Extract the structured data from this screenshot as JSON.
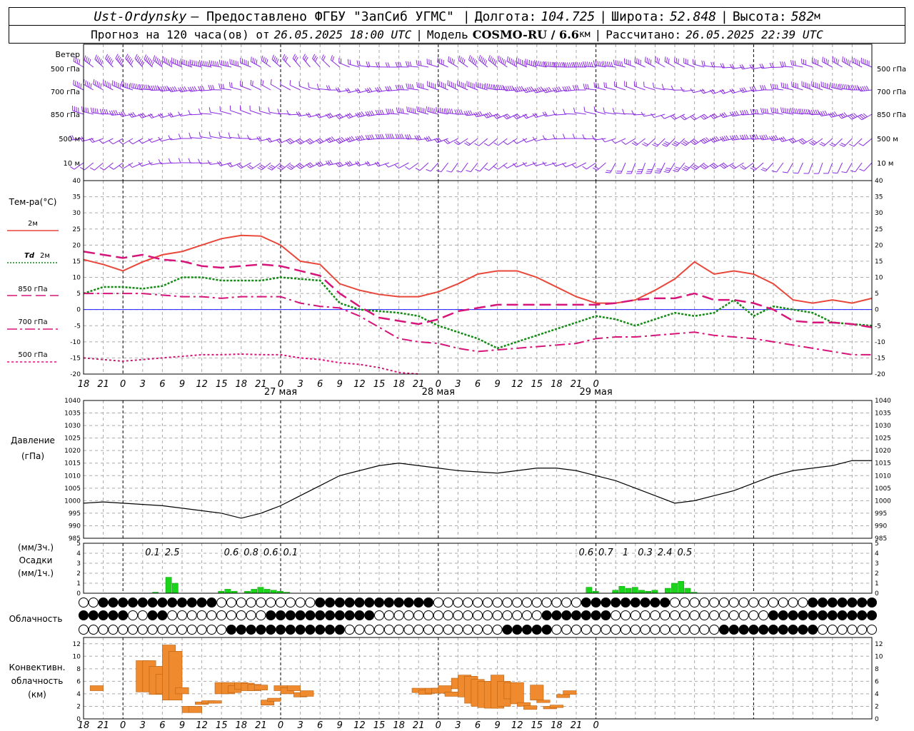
{
  "header": {
    "line1": {
      "station": "Ust-Ordynsky",
      "provider": "— Предоставлено ФГБУ \"ЗапСиб УГМС\"",
      "lon_label": "Долгота:",
      "lon_value": "104.725",
      "lat_label": "Широта:",
      "lat_value": "52.848",
      "alt_label": "Высота:",
      "alt_value": "582",
      "alt_unit": "м"
    },
    "line2": {
      "forecast_text": "Прогноз на 120 часа(ов) от",
      "forecast_from": "26.05.2025 18:00 UTC",
      "model_label": "Модель",
      "model_name": "COSMO-RU / 6.6",
      "model_unit": "км",
      "calc_label": "Рассчитано:",
      "calc_value": "26.05.2025 22:39 UTC"
    }
  },
  "colors": {
    "wind": "#8a2be2",
    "t2m": "#e8473a",
    "td2m": "#138a13",
    "t850": "#d6157a",
    "zero_line": "#1a1aff",
    "precip": "#1ad41a",
    "convective": "#f08a2e"
  },
  "labels": {
    "wind_title": "Ветер",
    "wind_levels": [
      "500 гПа",
      "700 гПа",
      "850 гПа",
      "500 м",
      "10 м"
    ],
    "temp_title": "Тем-ра(°C)",
    "legend_2m": "2м",
    "legend_td": "Td",
    "legend_td_2m": "2м",
    "legend_850": "850 гПа",
    "legend_700": "700 гПа",
    "legend_500": "500 гПа",
    "pressure_title": "Давление",
    "pressure_unit": "(гПа)",
    "precip_unit3": "(мм/3ч.)",
    "precip_title": "Осадки",
    "precip_unit1": "(мм/1ч.)",
    "cloud_title": "Облачность",
    "conv_title1": "Конвективн.",
    "conv_title2": "облачность",
    "conv_unit": "(км)"
  },
  "chart_data": [
    {
      "type": "line",
      "title": "Тем-ра(°C)",
      "x_unit": "hours from 26.05.2025 18:00 UTC",
      "x_tick_labels": [
        "18",
        "21",
        "0",
        "3",
        "6",
        "9",
        "12",
        "15",
        "18",
        "21",
        "0",
        "3",
        "6",
        "9",
        "12",
        "15",
        "18",
        "21",
        "0",
        "3",
        "6",
        "9",
        "12",
        "15",
        "18",
        "21",
        "0"
      ],
      "day_labels": [
        "27 мая",
        "28 мая",
        "29 мая"
      ],
      "ylim": [
        -20,
        40
      ],
      "yticks": [
        -20,
        -15,
        -10,
        -5,
        0,
        5,
        10,
        15,
        20,
        25,
        30,
        35,
        40
      ],
      "grid": true,
      "series": [
        {
          "name": "2м",
          "x": [
            0,
            3,
            6,
            9,
            12,
            15,
            18,
            21,
            24,
            27,
            30,
            33,
            36,
            39,
            42,
            45,
            48,
            51,
            54,
            57,
            60,
            63,
            66,
            69,
            72,
            75,
            78,
            81,
            84,
            87,
            90,
            93,
            96,
            99,
            102,
            105,
            108,
            111,
            114,
            117,
            120
          ],
          "values": [
            15.5,
            14,
            12,
            14.8,
            17,
            18,
            20,
            22,
            23,
            22.8,
            20,
            15,
            14,
            8,
            6,
            4.7,
            4,
            4,
            5.5,
            8,
            11,
            12,
            12,
            10,
            7,
            4,
            2,
            2,
            3,
            6,
            9.5,
            14.8,
            11,
            12,
            11,
            8,
            3,
            2,
            3,
            2,
            3.5
          ]
        },
        {
          "name": "Td 2м",
          "x": [
            0,
            3,
            6,
            9,
            12,
            15,
            18,
            21,
            24,
            27,
            30,
            33,
            36,
            39,
            42,
            45,
            48,
            51,
            54,
            57,
            60,
            63,
            66,
            69,
            72,
            75,
            78,
            81,
            84,
            87,
            90,
            93,
            96,
            99,
            102,
            105,
            108,
            111,
            114,
            117,
            120
          ],
          "values": [
            5,
            7,
            7,
            6.5,
            7.3,
            10,
            10,
            9,
            9,
            9,
            10,
            9.5,
            9,
            2,
            0,
            -0.5,
            -1,
            -2,
            -5,
            -7,
            -9,
            -12,
            -10,
            -8,
            -6,
            -4,
            -2,
            -3,
            -5,
            -3,
            -1,
            -2,
            -1,
            3,
            -2,
            1,
            0,
            -1,
            -4,
            -4.5,
            -5
          ]
        },
        {
          "name": "850 гПа",
          "x": [
            0,
            3,
            6,
            9,
            12,
            15,
            18,
            21,
            24,
            27,
            30,
            33,
            36,
            39,
            42,
            45,
            48,
            51,
            54,
            57,
            60,
            63,
            66,
            69,
            72,
            75,
            78,
            81,
            84,
            87,
            90,
            93,
            96,
            99,
            102,
            105,
            108,
            111,
            114,
            117,
            120
          ],
          "values": [
            18,
            17,
            16,
            17,
            15.5,
            15,
            13.5,
            13,
            13.5,
            14,
            13.5,
            12,
            10.5,
            5,
            1,
            -2.5,
            -3.5,
            -4.5,
            -3,
            -0.5,
            0.5,
            1.5,
            1.5,
            1.5,
            1.5,
            1.5,
            1.5,
            2,
            3,
            3.5,
            3.5,
            5,
            3,
            3,
            2,
            0,
            -3.5,
            -4,
            -4,
            -4.5,
            -5.5
          ]
        },
        {
          "name": "700 гПа",
          "x": [
            0,
            3,
            6,
            9,
            12,
            15,
            18,
            21,
            24,
            27,
            30,
            33,
            36,
            39,
            42,
            45,
            48,
            51,
            54,
            57,
            60,
            63,
            66,
            69,
            72,
            75,
            78,
            81,
            84,
            87,
            90,
            93,
            96,
            99,
            102,
            105,
            108,
            111,
            114,
            117,
            120
          ],
          "values": [
            5,
            5,
            5,
            5,
            4.5,
            4,
            4,
            3.5,
            4,
            4,
            4,
            2,
            1,
            0.5,
            -2,
            -5.5,
            -9,
            -10,
            -10.5,
            -12,
            -13,
            -12.5,
            -12,
            -11.5,
            -11,
            -10.5,
            -9,
            -8.5,
            -8.5,
            -8,
            -7.5,
            -7,
            -8,
            -8.5,
            -9,
            -10,
            -11,
            -12,
            -13,
            -14,
            -14
          ]
        },
        {
          "name": "500 гПа",
          "x": [
            0,
            3,
            6,
            9,
            12,
            15,
            18,
            21,
            24,
            27,
            30,
            33,
            36,
            39,
            42,
            45,
            48,
            51
          ],
          "values": [
            -15,
            -15.5,
            -16,
            -15.5,
            -15,
            -14.5,
            -14,
            -14,
            -13.8,
            -14,
            -14,
            -15,
            -15.5,
            -16.5,
            -17,
            -18,
            -19.5,
            -20
          ]
        }
      ]
    },
    {
      "type": "line",
      "title": "Давление",
      "ylabel": "(гПа)",
      "ylim": [
        985,
        1040
      ],
      "yticks": [
        985,
        990,
        995,
        1000,
        1005,
        1010,
        1015,
        1020,
        1025,
        1030,
        1035,
        1040
      ],
      "grid": true,
      "series": [
        {
          "name": "Давление",
          "x": [
            0,
            3,
            6,
            9,
            12,
            15,
            18,
            21,
            24,
            27,
            30,
            33,
            36,
            39,
            42,
            45,
            48,
            51,
            54,
            57,
            60,
            63,
            66,
            69,
            72,
            75,
            78,
            81,
            84,
            87,
            90,
            93,
            96,
            99,
            102,
            105,
            108,
            111,
            114,
            117,
            120
          ],
          "values": [
            999,
            999.5,
            999,
            998.5,
            998,
            997,
            996,
            995,
            993,
            995,
            998,
            1002,
            1006,
            1010,
            1012,
            1014,
            1015,
            1014,
            1013,
            1012,
            1011.5,
            1011,
            1012,
            1013,
            1013,
            1012,
            1010,
            1008,
            1005,
            1002,
            999,
            1000,
            1002,
            1004,
            1007,
            1010,
            1012,
            1013,
            1014,
            1016,
            1016
          ]
        }
      ]
    },
    {
      "type": "bar",
      "title": "Осадки",
      "ylabel": "(мм/3ч.) (мм/1ч.)",
      "ylim": [
        0,
        5
      ],
      "yticks": [
        0,
        1,
        2,
        3,
        4,
        5
      ],
      "totals_3h": [
        {
          "x": 10.5,
          "label": "0.1"
        },
        {
          "x": 13.5,
          "label": "2.5"
        },
        {
          "x": 22.5,
          "label": "0.6"
        },
        {
          "x": 25.5,
          "label": "0.8"
        },
        {
          "x": 28.5,
          "label": "0.6"
        },
        {
          "x": 31.5,
          "label": "0.1"
        },
        {
          "x": 76.5,
          "label": "0.6"
        },
        {
          "x": 79.5,
          "label": "0.7"
        },
        {
          "x": 82.5,
          "label": "1"
        },
        {
          "x": 85.5,
          "label": "0.3"
        },
        {
          "x": 88.5,
          "label": "2.4"
        },
        {
          "x": 91.5,
          "label": "0.5"
        }
      ],
      "bars_1h": [
        {
          "x": 11,
          "value": 0.1
        },
        {
          "x": 13,
          "value": 1.6
        },
        {
          "x": 14,
          "value": 1.0
        },
        {
          "x": 21,
          "value": 0.2
        },
        {
          "x": 22,
          "value": 0.4
        },
        {
          "x": 23,
          "value": 0.2
        },
        {
          "x": 25,
          "value": 0.2
        },
        {
          "x": 26,
          "value": 0.4
        },
        {
          "x": 27,
          "value": 0.6
        },
        {
          "x": 28,
          "value": 0.4
        },
        {
          "x": 29,
          "value": 0.3
        },
        {
          "x": 30,
          "value": 0.2
        },
        {
          "x": 31,
          "value": 0.1
        },
        {
          "x": 77,
          "value": 0.6
        },
        {
          "x": 78,
          "value": 0.2
        },
        {
          "x": 81,
          "value": 0.3
        },
        {
          "x": 82,
          "value": 0.7
        },
        {
          "x": 83,
          "value": 0.5
        },
        {
          "x": 84,
          "value": 0.6
        },
        {
          "x": 85,
          "value": 0.3
        },
        {
          "x": 86,
          "value": 0.2
        },
        {
          "x": 87,
          "value": 0.3
        },
        {
          "x": 89,
          "value": 0.5
        },
        {
          "x": 90,
          "value": 1.0
        },
        {
          "x": 91,
          "value": 1.2
        },
        {
          "x": 92,
          "value": 0.5
        },
        {
          "x": 93,
          "value": 0.1
        }
      ]
    },
    {
      "type": "bar",
      "title": "Конвективн. облачность",
      "ylabel": "(км)",
      "ylim": [
        0,
        13
      ],
      "yticks": [
        0,
        2,
        4,
        6,
        8,
        10,
        12
      ],
      "bars": [
        {
          "x": 2,
          "bottom": 4.5,
          "top": 5.3
        },
        {
          "x": 9,
          "bottom": 4.3,
          "top": 9.3
        },
        {
          "x": 10,
          "bottom": 4.3,
          "top": 9.3
        },
        {
          "x": 11,
          "bottom": 3.9,
          "top": 8.4
        },
        {
          "x": 12,
          "bottom": 4.0,
          "top": 7.1
        },
        {
          "x": 13,
          "bottom": 3.0,
          "top": 11.8
        },
        {
          "x": 14,
          "bottom": 3.0,
          "top": 10.8
        },
        {
          "x": 15,
          "bottom": 4.0,
          "top": 5.0
        },
        {
          "x": 16,
          "bottom": 1.0,
          "top": 2.0
        },
        {
          "x": 17,
          "bottom": 1.0,
          "top": 2.0
        },
        {
          "x": 18,
          "bottom": 2.3,
          "top": 2.7
        },
        {
          "x": 19,
          "bottom": 2.5,
          "top": 2.9
        },
        {
          "x": 20,
          "bottom": 2.5,
          "top": 2.9
        },
        {
          "x": 21,
          "bottom": 4.0,
          "top": 5.8
        },
        {
          "x": 22,
          "bottom": 4.0,
          "top": 5.8
        },
        {
          "x": 23,
          "bottom": 4.2,
          "top": 5.3
        },
        {
          "x": 24,
          "bottom": 4.7,
          "top": 5.8
        },
        {
          "x": 25,
          "bottom": 4.5,
          "top": 5.7
        },
        {
          "x": 26,
          "bottom": 4.5,
          "top": 5.5
        },
        {
          "x": 27,
          "bottom": 4.6,
          "top": 5.4
        },
        {
          "x": 28,
          "bottom": 2.2,
          "top": 3.0
        },
        {
          "x": 29,
          "bottom": 2.8,
          "top": 3.3
        },
        {
          "x": 30,
          "bottom": 4.5,
          "top": 5.3
        },
        {
          "x": 31,
          "bottom": 4.0,
          "top": 5.0
        },
        {
          "x": 32,
          "bottom": 4.5,
          "top": 5.3
        },
        {
          "x": 33,
          "bottom": 3.5,
          "top": 4.2
        },
        {
          "x": 34,
          "bottom": 3.6,
          "top": 4.5
        },
        {
          "x": 51,
          "bottom": 4.2,
          "top": 4.9
        },
        {
          "x": 52,
          "bottom": 3.9,
          "top": 4.6
        },
        {
          "x": 53,
          "bottom": 4.1,
          "top": 4.9
        },
        {
          "x": 54,
          "bottom": 4.1,
          "top": 4.9
        },
        {
          "x": 55,
          "bottom": 4.1,
          "top": 5.3
        },
        {
          "x": 56,
          "bottom": 3.6,
          "top": 4.3
        },
        {
          "x": 57,
          "bottom": 4.8,
          "top": 6.5
        },
        {
          "x": 58,
          "bottom": 3.5,
          "top": 7.0
        },
        {
          "x": 59,
          "bottom": 2.5,
          "top": 6.8
        },
        {
          "x": 60,
          "bottom": 2.0,
          "top": 6.3
        },
        {
          "x": 61,
          "bottom": 1.8,
          "top": 6.0
        },
        {
          "x": 62,
          "bottom": 1.7,
          "top": 6.0
        },
        {
          "x": 63,
          "bottom": 1.7,
          "top": 7.0
        },
        {
          "x": 64,
          "bottom": 2.0,
          "top": 6.0
        },
        {
          "x": 65,
          "bottom": 3.2,
          "top": 5.8
        },
        {
          "x": 66,
          "bottom": 2.4,
          "top": 5.8
        },
        {
          "x": 67,
          "bottom": 2.0,
          "top": 2.6
        },
        {
          "x": 68,
          "bottom": 1.5,
          "top": 2.1
        },
        {
          "x": 69,
          "bottom": 3.0,
          "top": 5.4
        },
        {
          "x": 70,
          "bottom": 2.6,
          "top": 3.0
        },
        {
          "x": 71,
          "bottom": 1.6,
          "top": 2.0
        },
        {
          "x": 72,
          "bottom": 1.8,
          "top": 2.2
        },
        {
          "x": 73,
          "bottom": 3.4,
          "top": 3.9
        },
        {
          "x": 74,
          "bottom": 3.9,
          "top": 4.5
        }
      ]
    }
  ]
}
